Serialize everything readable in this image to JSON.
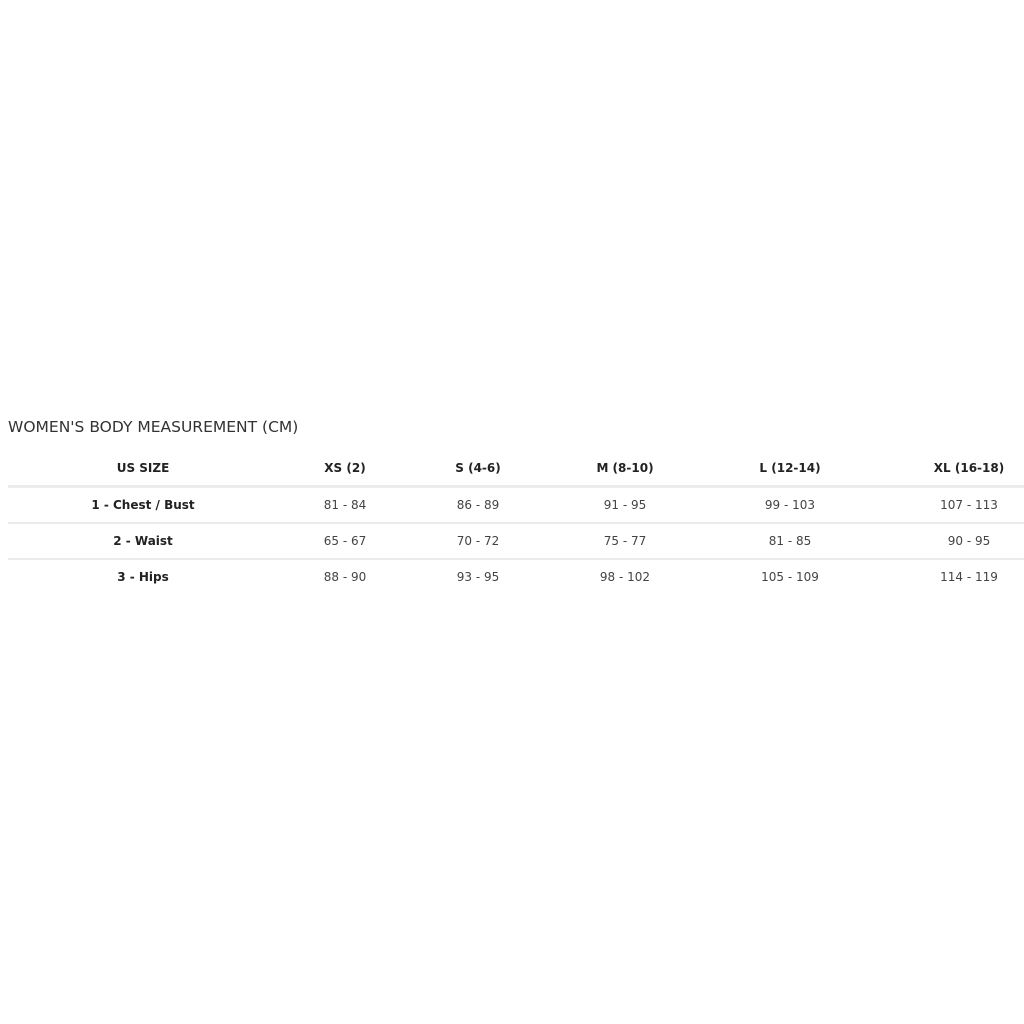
{
  "title": "WOMEN'S BODY MEASUREMENT (CM)",
  "table": {
    "headers": [
      "US SIZE",
      "XS (2)",
      "S (4-6)",
      "M (8-10)",
      "L (12-14)",
      "XL (16-18)"
    ],
    "rows": [
      {
        "label": "1 - Chest / Bust",
        "values": [
          "81 - 84",
          "86 - 89",
          "91 - 95",
          "99 - 103",
          "107 - 113"
        ]
      },
      {
        "label": "2 - Waist",
        "values": [
          "65 - 67",
          "70 - 72",
          "75 - 77",
          "81 - 85",
          "90 - 95"
        ]
      },
      {
        "label": "3 - Hips",
        "values": [
          "88 - 90",
          "93 - 95",
          "98 - 102",
          "105 - 109",
          "114 - 119"
        ]
      }
    ]
  }
}
